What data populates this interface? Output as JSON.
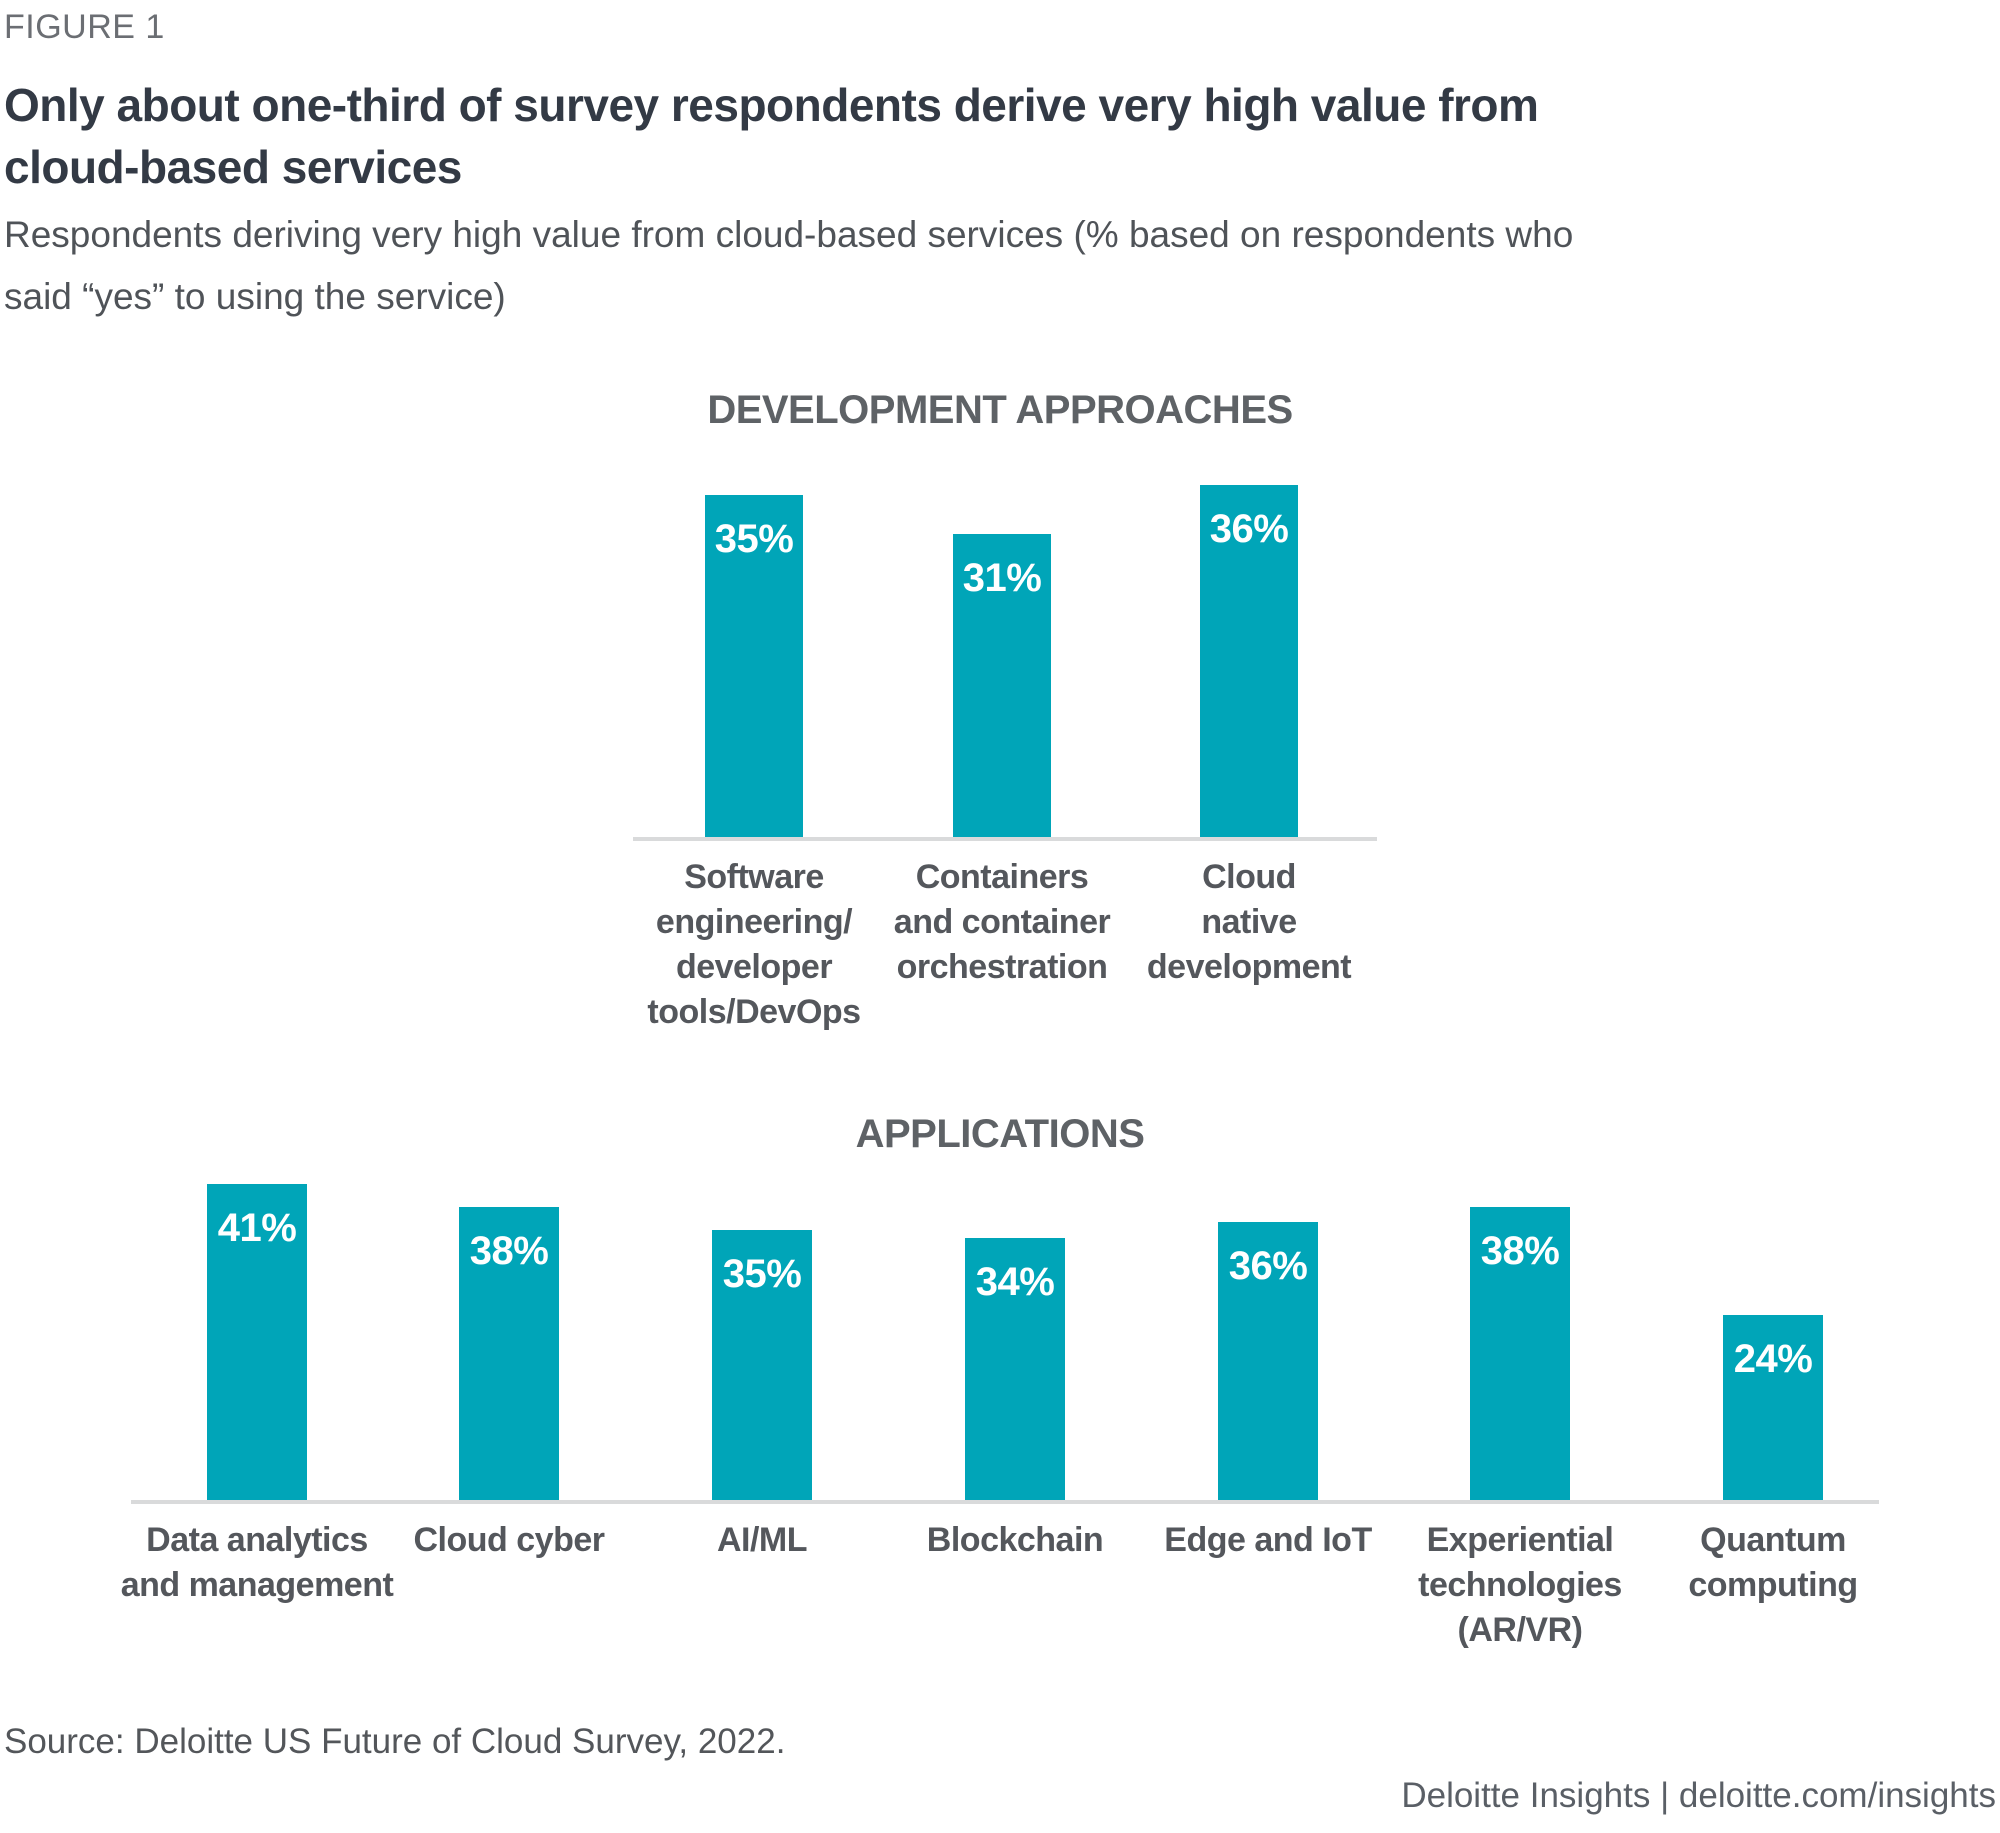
{
  "figure_label": "FIGURE 1",
  "title_lines": [
    "Only about one-third of survey respondents derive very high value from",
    "cloud-based services"
  ],
  "subtitle_lines": [
    "Respondents deriving very high value from cloud-based services (% based on respondents who",
    "said “yes” to using the service)"
  ],
  "source": "Source: Deloitte US Future of Cloud Survey, 2022.",
  "footer": "Deloitte Insights | deloitte.com/insights",
  "colors": {
    "bar": "#00A5B8",
    "axis": "#D9DADB",
    "title_text": "#333A45",
    "section_title_text": "#5E6266",
    "category_text": "#54575C",
    "value_label_text": "#ffffff"
  },
  "chart_data": [
    {
      "type": "bar",
      "title": "DEVELOPMENT APPROACHES",
      "categories": [
        "Software\nengineering/\ndeveloper\ntools/DevOps",
        "Containers\nand container\norchestration",
        "Cloud\nnative\ndevelopment"
      ],
      "values": [
        35,
        31,
        36
      ],
      "unit": "%",
      "value_labels": [
        "35%",
        "31%",
        "36%"
      ],
      "xlabel": "",
      "ylabel": "",
      "ylim": [
        0,
        40
      ],
      "grid": false,
      "legend": "none"
    },
    {
      "type": "bar",
      "title": "APPLICATIONS",
      "categories": [
        "Data analytics\nand management",
        "Cloud cyber",
        "AI/ML",
        "Blockchain",
        "Edge and IoT",
        "Experiential\ntechnologies\n(AR/VR)",
        "Quantum\ncomputing"
      ],
      "values": [
        41,
        38,
        35,
        34,
        36,
        38,
        24
      ],
      "unit": "%",
      "value_labels": [
        "41%",
        "38%",
        "35%",
        "34%",
        "36%",
        "38%",
        "24%"
      ],
      "xlabel": "",
      "ylabel": "",
      "ylim": [
        0,
        45
      ],
      "grid": false,
      "legend": "none"
    }
  ]
}
